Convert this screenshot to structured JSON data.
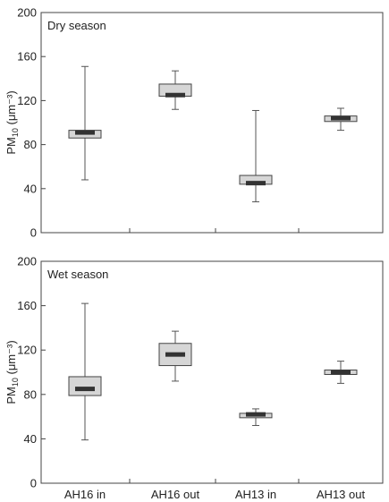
{
  "chart_data": [
    {
      "type": "box",
      "title": "Dry season",
      "ylabel_main": "PM",
      "ylabel_sub": "10",
      "ylabel_unit": " (μm⁻³)",
      "ylim": [
        0,
        200
      ],
      "yticks": [
        "0",
        "40",
        "80",
        "120",
        "160",
        "200"
      ],
      "categories": [
        "AH16 in",
        "AH16 out",
        "AH13 in",
        "AH13 out"
      ],
      "boxes": [
        {
          "min": 48,
          "q1": 86,
          "median": 91,
          "q3": 93,
          "max": 151
        },
        {
          "min": 112,
          "q1": 124,
          "median": 125,
          "q3": 135,
          "max": 147
        },
        {
          "min": 28,
          "q1": 44,
          "median": 45,
          "q3": 52,
          "max": 111
        },
        {
          "min": 93,
          "q1": 101,
          "median": 104,
          "q3": 106,
          "max": 113
        }
      ],
      "show_xlabels": false
    },
    {
      "type": "box",
      "title": "Wet season",
      "ylabel_main": "PM",
      "ylabel_sub": "10",
      "ylabel_unit": " (μm⁻³)",
      "ylim": [
        0,
        200
      ],
      "yticks": [
        "0",
        "40",
        "80",
        "120",
        "160",
        "200"
      ],
      "categories": [
        "AH16 in",
        "AH16 out",
        "AH13 in",
        "AH13 out"
      ],
      "boxes": [
        {
          "min": 39,
          "q1": 79,
          "median": 85,
          "q3": 96,
          "max": 162
        },
        {
          "min": 92,
          "q1": 106,
          "median": 116,
          "q3": 126,
          "max": 137
        },
        {
          "min": 52,
          "q1": 59,
          "median": 62,
          "q3": 63,
          "max": 67
        },
        {
          "min": 90,
          "q1": 98,
          "median": 100,
          "q3": 102,
          "max": 110
        }
      ],
      "show_xlabels": true
    }
  ]
}
